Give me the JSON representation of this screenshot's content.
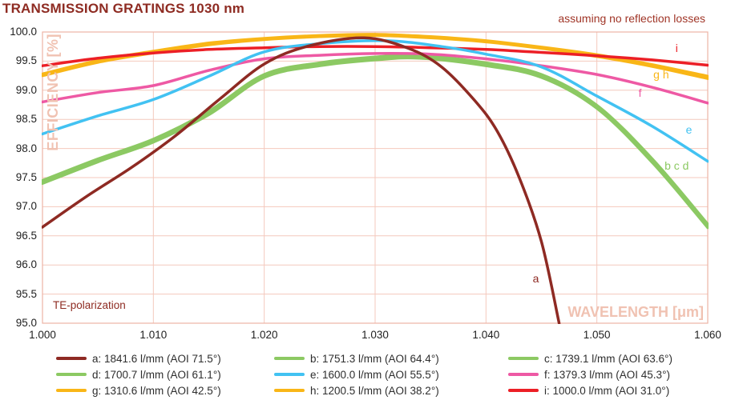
{
  "title": "TRANSMISSION GRATINGS 1030 nm",
  "subtitle": "assuming no reflection losses",
  "polarization_note": "TE-polarization",
  "axes": {
    "y_label": "EFFICIENCY [%]",
    "x_label": "WAVELENGTH [μm]",
    "y_ticks": [
      "100.0",
      "99.5",
      "99.0",
      "98.5",
      "98.0",
      "97.5",
      "97.0",
      "96.5",
      "96.0",
      "95.5",
      "95.0"
    ],
    "x_ticks": [
      "1.000",
      "1.010",
      "1.020",
      "1.030",
      "1.040",
      "1.050",
      "1.060"
    ]
  },
  "colors": {
    "title_text": "#8e2b22",
    "subtitle_text": "#a03527",
    "grid": "#f4c9bd",
    "frame": "#edb3a5",
    "axis_label_text": "#f0c2b2",
    "tick_text": "#1f1f1f",
    "legend_text": "#2e2e2e"
  },
  "chart_data": {
    "type": "line",
    "title": "TRANSMISSION GRATINGS 1030 nm",
    "xlabel": "WAVELENGTH [μm]",
    "ylabel": "EFFICIENCY [%]",
    "xlim": [
      1.0,
      1.06
    ],
    "ylim": [
      95.0,
      100.0
    ],
    "x_tick_step": 0.01,
    "y_tick_step": 0.5,
    "grid": true,
    "legend_position": "bottom",
    "series": [
      {
        "id": "a",
        "label": "a: 1841.6 l/mm (AOI 71.5°)",
        "color": "#8e2a23",
        "points": [
          [
            1.0,
            96.65
          ],
          [
            1.004,
            97.18
          ],
          [
            1.008,
            97.67
          ],
          [
            1.012,
            98.22
          ],
          [
            1.016,
            98.85
          ],
          [
            1.02,
            99.45
          ],
          [
            1.024,
            99.76
          ],
          [
            1.029,
            99.9
          ],
          [
            1.033,
            99.72
          ],
          [
            1.036,
            99.4
          ],
          [
            1.039,
            98.82
          ],
          [
            1.041,
            98.3
          ],
          [
            1.043,
            97.5
          ],
          [
            1.045,
            96.4
          ],
          [
            1.0466,
            95.0
          ]
        ]
      },
      {
        "id": "b",
        "label": "b: 1751.3 l/mm (AOI 64.4°)",
        "color": "#8cc963",
        "points": [
          [
            1.0,
            97.45
          ],
          [
            1.005,
            97.82
          ],
          [
            1.01,
            98.16
          ],
          [
            1.015,
            98.64
          ],
          [
            1.02,
            99.27
          ],
          [
            1.025,
            99.47
          ],
          [
            1.03,
            99.57
          ],
          [
            1.034,
            99.6
          ],
          [
            1.04,
            99.47
          ],
          [
            1.045,
            99.27
          ],
          [
            1.05,
            98.74
          ],
          [
            1.055,
            97.82
          ],
          [
            1.06,
            96.7
          ]
        ]
      },
      {
        "id": "c",
        "label": "c: 1739.1 l/mm (AOI 63.6°)",
        "color": "#8cc963",
        "points": [
          [
            1.0,
            97.42
          ],
          [
            1.005,
            97.8
          ],
          [
            1.01,
            98.13
          ],
          [
            1.015,
            98.61
          ],
          [
            1.02,
            99.24
          ],
          [
            1.025,
            99.44
          ],
          [
            1.03,
            99.55
          ],
          [
            1.034,
            99.57
          ],
          [
            1.04,
            99.44
          ],
          [
            1.045,
            99.24
          ],
          [
            1.05,
            98.71
          ],
          [
            1.055,
            97.79
          ],
          [
            1.06,
            96.67
          ]
        ]
      },
      {
        "id": "d",
        "label": "d: 1700.7 l/mm (AOI 61.1°)",
        "color": "#8cc963",
        "points": [
          [
            1.0,
            97.4
          ],
          [
            1.005,
            97.77
          ],
          [
            1.01,
            98.11
          ],
          [
            1.015,
            98.58
          ],
          [
            1.02,
            99.22
          ],
          [
            1.025,
            99.42
          ],
          [
            1.03,
            99.52
          ],
          [
            1.034,
            99.55
          ],
          [
            1.04,
            99.42
          ],
          [
            1.045,
            99.22
          ],
          [
            1.05,
            98.69
          ],
          [
            1.055,
            97.76
          ],
          [
            1.06,
            96.64
          ]
        ]
      },
      {
        "id": "e",
        "label": "e: 1600.0 l/mm (AOI 55.5°)",
        "color": "#42c2f2",
        "points": [
          [
            1.0,
            98.25
          ],
          [
            1.005,
            98.56
          ],
          [
            1.01,
            98.84
          ],
          [
            1.015,
            99.24
          ],
          [
            1.02,
            99.66
          ],
          [
            1.025,
            99.8
          ],
          [
            1.031,
            99.85
          ],
          [
            1.036,
            99.75
          ],
          [
            1.04,
            99.62
          ],
          [
            1.045,
            99.4
          ],
          [
            1.05,
            98.9
          ],
          [
            1.055,
            98.38
          ],
          [
            1.06,
            97.78
          ]
        ]
      },
      {
        "id": "f",
        "label": "f: 1379.3 l/mm (AOI 45.3°)",
        "color": "#ee59a4",
        "points": [
          [
            1.0,
            98.8
          ],
          [
            1.005,
            98.96
          ],
          [
            1.01,
            99.08
          ],
          [
            1.015,
            99.34
          ],
          [
            1.02,
            99.54
          ],
          [
            1.025,
            99.6
          ],
          [
            1.03,
            99.63
          ],
          [
            1.035,
            99.62
          ],
          [
            1.04,
            99.54
          ],
          [
            1.045,
            99.42
          ],
          [
            1.05,
            99.27
          ],
          [
            1.055,
            99.05
          ],
          [
            1.06,
            98.78
          ]
        ]
      },
      {
        "id": "g",
        "label": "g: 1310.6 l/mm (AOI 42.5°)",
        "color": "#f9b617",
        "points": [
          [
            1.0,
            99.25
          ],
          [
            1.005,
            99.48
          ],
          [
            1.01,
            99.64
          ],
          [
            1.015,
            99.78
          ],
          [
            1.02,
            99.87
          ],
          [
            1.025,
            99.92
          ],
          [
            1.03,
            99.94
          ],
          [
            1.035,
            99.9
          ],
          [
            1.04,
            99.83
          ],
          [
            1.045,
            99.72
          ],
          [
            1.05,
            99.58
          ],
          [
            1.055,
            99.41
          ],
          [
            1.06,
            99.2
          ]
        ]
      },
      {
        "id": "h",
        "label": "h: 1200.5 l/mm (AOI 38.2°)",
        "color": "#f9b617",
        "points": [
          [
            1.0,
            99.28
          ],
          [
            1.005,
            99.51
          ],
          [
            1.01,
            99.67
          ],
          [
            1.015,
            99.81
          ],
          [
            1.02,
            99.89
          ],
          [
            1.025,
            99.94
          ],
          [
            1.03,
            99.96
          ],
          [
            1.035,
            99.92
          ],
          [
            1.04,
            99.85
          ],
          [
            1.045,
            99.74
          ],
          [
            1.05,
            99.61
          ],
          [
            1.055,
            99.44
          ],
          [
            1.06,
            99.24
          ]
        ]
      },
      {
        "id": "i",
        "label": "i: 1000.0 l/mm (AOI 31.0°)",
        "color": "#ec1f26",
        "points": [
          [
            1.0,
            99.42
          ],
          [
            1.005,
            99.55
          ],
          [
            1.01,
            99.64
          ],
          [
            1.015,
            99.7
          ],
          [
            1.02,
            99.73
          ],
          [
            1.025,
            99.75
          ],
          [
            1.03,
            99.75
          ],
          [
            1.035,
            99.73
          ],
          [
            1.04,
            99.7
          ],
          [
            1.045,
            99.65
          ],
          [
            1.05,
            99.59
          ],
          [
            1.055,
            99.52
          ],
          [
            1.06,
            99.43
          ]
        ]
      }
    ],
    "curve_labels": [
      {
        "text": "a",
        "x": 1.0445,
        "y": 95.77,
        "color": "#8e2a23"
      },
      {
        "text": "b c d",
        "x": 1.0572,
        "y": 97.7,
        "color": "#8cc963"
      },
      {
        "text": "e",
        "x": 1.0583,
        "y": 98.33,
        "color": "#42c2f2"
      },
      {
        "text": "f",
        "x": 1.0539,
        "y": 98.96,
        "color": "#ee59a4"
      },
      {
        "text": "g h",
        "x": 1.0558,
        "y": 99.27,
        "color": "#f9b617"
      },
      {
        "text": "i",
        "x": 1.0572,
        "y": 99.72,
        "color": "#ec1f26"
      }
    ]
  }
}
